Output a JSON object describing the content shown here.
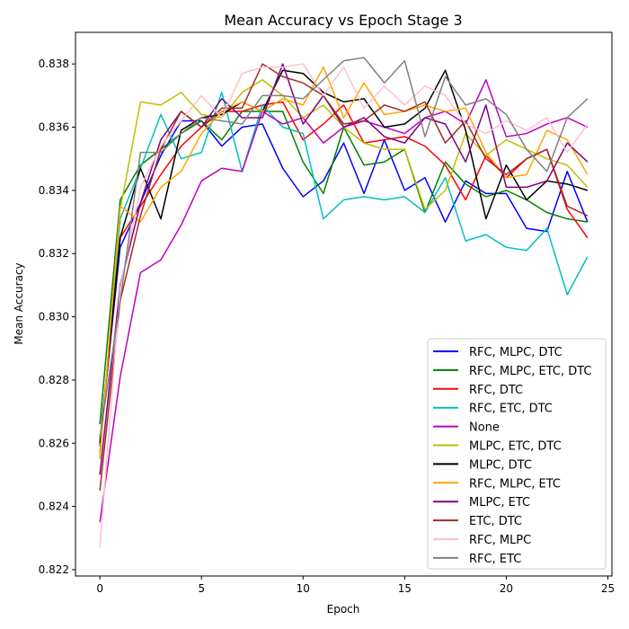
{
  "chart_data": {
    "type": "line",
    "title": "Mean Accuracy vs Epoch Stage 3",
    "xlabel": "Epoch",
    "ylabel": "Mean Accuracy",
    "xlim": [
      -1.2,
      25.2
    ],
    "ylim": [
      0.8218,
      0.839
    ],
    "x_ticks": [
      0,
      5,
      10,
      15,
      20,
      25
    ],
    "y_ticks": [
      0.822,
      0.824,
      0.826,
      0.828,
      0.83,
      0.832,
      0.834,
      0.836,
      0.838
    ],
    "grid": false,
    "legend_position": "lower-right",
    "x": [
      0,
      1,
      2,
      3,
      4,
      5,
      6,
      7,
      8,
      9,
      10,
      11,
      12,
      13,
      14,
      15,
      16,
      17,
      18,
      19,
      20,
      21,
      22,
      23,
      24
    ],
    "series": [
      {
        "name": "RFC, MLPC, DTC",
        "color": "#0000ff",
        "values": [
          0.826,
          0.8322,
          0.8336,
          0.8351,
          0.8362,
          0.8362,
          0.8354,
          0.836,
          0.8361,
          0.8347,
          0.8338,
          0.8343,
          0.8355,
          0.8339,
          0.8356,
          0.834,
          0.8344,
          0.833,
          0.8343,
          0.8339,
          0.8339,
          0.8328,
          0.8327,
          0.8346,
          0.833
        ]
      },
      {
        "name": "RFC, MLPC, ETC, DTC",
        "color": "#008000",
        "values": [
          0.8266,
          0.8337,
          0.8348,
          0.8353,
          0.8358,
          0.8362,
          0.8356,
          0.8365,
          0.8365,
          0.8365,
          0.8349,
          0.8339,
          0.836,
          0.8348,
          0.8349,
          0.8353,
          0.8333,
          0.8349,
          0.8342,
          0.8338,
          0.834,
          0.8337,
          0.8333,
          0.8331,
          0.833
        ]
      },
      {
        "name": "RFC, DTC",
        "color": "#ff0000",
        "values": [
          0.8259,
          0.8325,
          0.8335,
          0.8345,
          0.8354,
          0.836,
          0.8365,
          0.8365,
          0.8367,
          0.8368,
          0.8356,
          0.8361,
          0.8367,
          0.8355,
          0.8356,
          0.8357,
          0.8354,
          0.8348,
          0.8337,
          0.8351,
          0.8344,
          0.835,
          0.8353,
          0.8334,
          0.8325
        ]
      },
      {
        "name": "RFC, ETC, DTC",
        "color": "#00bfbf",
        "values": [
          0.8257,
          0.8331,
          0.8347,
          0.8364,
          0.835,
          0.8352,
          0.8371,
          0.8346,
          0.8367,
          0.836,
          0.8358,
          0.8331,
          0.8337,
          0.8338,
          0.8337,
          0.8338,
          0.8333,
          0.8344,
          0.8324,
          0.8326,
          0.8322,
          0.8321,
          0.8328,
          0.8307,
          0.8319
        ]
      },
      {
        "name": "None",
        "color": "#bf00bf",
        "values": [
          0.8235,
          0.8281,
          0.8314,
          0.8318,
          0.8329,
          0.8343,
          0.8347,
          0.8346,
          0.8365,
          0.8361,
          0.8363,
          0.8355,
          0.836,
          0.8362,
          0.836,
          0.8358,
          0.8363,
          0.8365,
          0.8361,
          0.8375,
          0.8357,
          0.8358,
          0.8361,
          0.8363,
          0.836
        ]
      },
      {
        "name": "MLPC, ETC, DTC",
        "color": "#bfbf00",
        "values": [
          0.8255,
          0.8334,
          0.8368,
          0.8367,
          0.8371,
          0.8364,
          0.8363,
          0.8371,
          0.8375,
          0.837,
          0.8363,
          0.8367,
          0.836,
          0.8355,
          0.8353,
          0.8353,
          0.8334,
          0.834,
          0.8358,
          0.8351,
          0.8356,
          0.8353,
          0.835,
          0.8348,
          0.8341
        ]
      },
      {
        "name": "MLPC, DTC",
        "color": "#000000",
        "values": [
          0.826,
          0.8325,
          0.8347,
          0.8331,
          0.8359,
          0.8363,
          0.8364,
          0.8368,
          0.8365,
          0.8378,
          0.8377,
          0.8371,
          0.8368,
          0.8369,
          0.836,
          0.8361,
          0.8366,
          0.8378,
          0.8359,
          0.8331,
          0.8348,
          0.8337,
          0.8343,
          0.8342,
          0.834
        ]
      },
      {
        "name": "RFC, MLPC, ETC",
        "color": "#ffa500",
        "values": [
          0.8256,
          0.8335,
          0.833,
          0.8341,
          0.8346,
          0.8358,
          0.8365,
          0.8368,
          0.8365,
          0.8369,
          0.8367,
          0.8379,
          0.8363,
          0.8374,
          0.8364,
          0.8365,
          0.8367,
          0.8365,
          0.8366,
          0.8352,
          0.8344,
          0.8345,
          0.8359,
          0.8356,
          0.8345
        ]
      },
      {
        "name": "MLPC, ETC",
        "color": "#800080",
        "values": [
          0.825,
          0.831,
          0.8336,
          0.8356,
          0.8365,
          0.836,
          0.8369,
          0.8363,
          0.8363,
          0.838,
          0.8361,
          0.837,
          0.836,
          0.8363,
          0.8357,
          0.8355,
          0.8363,
          0.8361,
          0.8349,
          0.8367,
          0.8341,
          0.8341,
          0.8343,
          0.8355,
          0.8349
        ]
      },
      {
        "name": "ETC, DTC",
        "color": "#a52a2a",
        "values": [
          0.8245,
          0.8305,
          0.8332,
          0.8353,
          0.8365,
          0.836,
          0.8366,
          0.8366,
          0.838,
          0.8376,
          0.8374,
          0.837,
          0.8361,
          0.8362,
          0.8367,
          0.8365,
          0.8368,
          0.8355,
          0.8362,
          0.835,
          0.8345,
          0.835,
          0.8353,
          0.8335,
          0.8332
        ]
      },
      {
        "name": "RFC, MLPC",
        "color": "#ffc0cb",
        "values": [
          0.8227,
          0.8309,
          0.8341,
          0.8354,
          0.8362,
          0.837,
          0.8363,
          0.8377,
          0.8379,
          0.8379,
          0.838,
          0.837,
          0.8379,
          0.8366,
          0.8373,
          0.8367,
          0.8373,
          0.837,
          0.8361,
          0.8358,
          0.8362,
          0.8359,
          0.8363,
          0.8352,
          0.8361
        ]
      },
      {
        "name": "RFC, ETC",
        "color": "#808080",
        "values": [
          0.8262,
          0.8305,
          0.8352,
          0.8352,
          0.8358,
          0.8363,
          0.8362,
          0.8361,
          0.837,
          0.837,
          0.8369,
          0.8375,
          0.8381,
          0.8382,
          0.8374,
          0.8381,
          0.8357,
          0.8376,
          0.8367,
          0.8369,
          0.8364,
          0.8353,
          0.8346,
          0.8363,
          0.8369
        ]
      }
    ]
  }
}
